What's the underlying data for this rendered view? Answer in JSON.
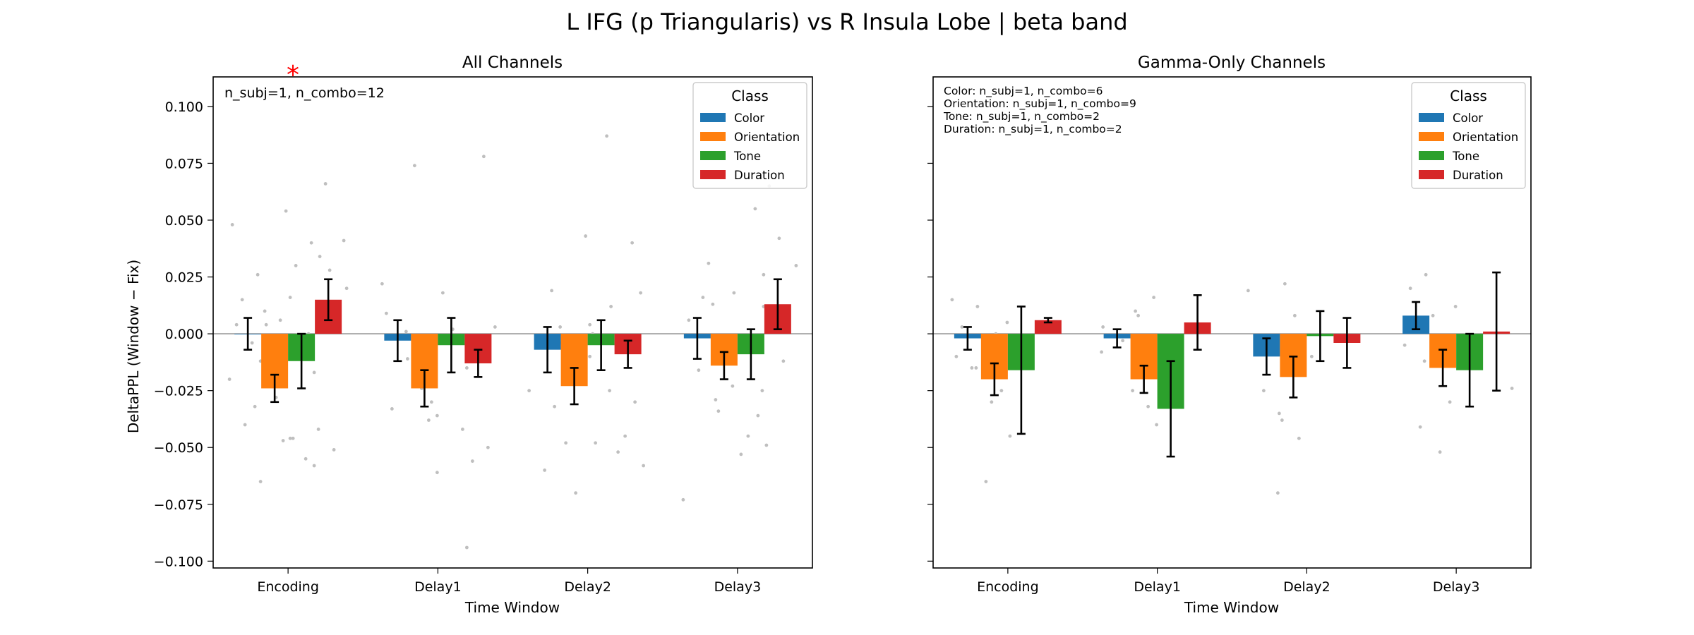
{
  "figure": {
    "suptitle": "L IFG (p Triangularis) vs R Insula Lobe  |  beta band"
  },
  "legend_title": "Class",
  "classes": [
    {
      "name": "Color",
      "color": "#1f77b4"
    },
    {
      "name": "Orientation",
      "color": "#ff7f0e"
    },
    {
      "name": "Tone",
      "color": "#2ca02c"
    },
    {
      "name": "Duration",
      "color": "#d62728"
    }
  ],
  "chart_data": [
    {
      "type": "bar",
      "title": "All Channels",
      "xlabel": "Time Window",
      "ylabel": "DeltaPPL (Window − Fix)",
      "ylim": [
        -0.103,
        0.113
      ],
      "yticks": [
        "0.100",
        "0.075",
        "0.050",
        "0.025",
        "0.000",
        "−0.025",
        "−0.050",
        "−0.075",
        "−0.100"
      ],
      "ytick_values": [
        0.1,
        0.075,
        0.05,
        0.025,
        0,
        -0.025,
        -0.05,
        -0.075,
        -0.1
      ],
      "categories": [
        "Encoding",
        "Delay1",
        "Delay2",
        "Delay3"
      ],
      "annotation": "n_subj=1, n_combo=12",
      "significance_marker": {
        "text": "*",
        "category": "Encoding",
        "color": "#ff0000"
      },
      "legend": "top-right",
      "series": [
        {
          "name": "Color",
          "values": [
            0.0,
            -0.003,
            -0.007,
            -0.002
          ],
          "err": [
            0.007,
            0.009,
            0.01,
            0.009
          ]
        },
        {
          "name": "Orientation",
          "values": [
            -0.024,
            -0.024,
            -0.023,
            -0.014
          ],
          "err": [
            0.006,
            0.008,
            0.008,
            0.006
          ]
        },
        {
          "name": "Tone",
          "values": [
            -0.012,
            -0.005,
            -0.005,
            -0.009
          ],
          "err": [
            0.012,
            0.012,
            0.011,
            0.011
          ]
        },
        {
          "name": "Duration",
          "values": [
            0.015,
            -0.013,
            -0.009,
            0.013
          ],
          "err": [
            0.009,
            0.006,
            0.006,
            0.011
          ]
        }
      ],
      "scatter_points": [
        [
          0,
          0.048
        ],
        [
          0,
          0.026
        ],
        [
          0,
          0.015
        ],
        [
          0,
          0.01
        ],
        [
          0,
          0.004
        ],
        [
          0,
          -0.004
        ],
        [
          0,
          -0.012
        ],
        [
          0,
          -0.02
        ],
        [
          0,
          -0.032
        ],
        [
          0,
          -0.04
        ],
        [
          1,
          0.016
        ],
        [
          1,
          0.004
        ],
        [
          1,
          -0.028
        ],
        [
          1,
          -0.046
        ],
        [
          1,
          -0.065
        ],
        [
          1,
          0.006
        ],
        [
          2,
          0.054
        ],
        [
          2,
          0.04
        ],
        [
          2,
          0.03
        ],
        [
          2,
          -0.042
        ],
        [
          2,
          -0.046
        ],
        [
          2,
          -0.055
        ],
        [
          2,
          -0.058
        ],
        [
          2,
          -0.047
        ],
        [
          2,
          0.0
        ],
        [
          3,
          0.066
        ],
        [
          3,
          0.041
        ],
        [
          3,
          0.034
        ],
        [
          3,
          0.028
        ],
        [
          3,
          0.02
        ],
        [
          3,
          -0.017
        ],
        [
          3,
          -0.051
        ],
        [
          4,
          0.022
        ],
        [
          4,
          -0.011
        ],
        [
          4,
          -0.033
        ],
        [
          4,
          0.074
        ],
        [
          4,
          0.009
        ],
        [
          5,
          -0.038
        ],
        [
          5,
          -0.061
        ],
        [
          5,
          0.001
        ],
        [
          5,
          -0.03
        ],
        [
          5,
          -0.024
        ],
        [
          6,
          -0.094
        ],
        [
          6,
          0.018
        ],
        [
          6,
          0.002
        ],
        [
          6,
          -0.01
        ],
        [
          6,
          -0.036
        ],
        [
          7,
          0.078
        ],
        [
          7,
          -0.042
        ],
        [
          7,
          -0.05
        ],
        [
          7,
          -0.056
        ],
        [
          7,
          0.003
        ],
        [
          7,
          -0.015
        ],
        [
          8,
          0.019
        ],
        [
          8,
          -0.004
        ],
        [
          8,
          -0.025
        ],
        [
          8,
          -0.032
        ],
        [
          8,
          -0.06
        ],
        [
          9,
          -0.01
        ],
        [
          9,
          -0.048
        ],
        [
          9,
          -0.07
        ],
        [
          9,
          0.0
        ],
        [
          9,
          0.003
        ],
        [
          10,
          0.087
        ],
        [
          10,
          0.043
        ],
        [
          10,
          0.012
        ],
        [
          10,
          -0.048
        ],
        [
          10,
          -0.052
        ],
        [
          10,
          0.004
        ],
        [
          11,
          0.04
        ],
        [
          11,
          0.018
        ],
        [
          11,
          -0.025
        ],
        [
          11,
          -0.03
        ],
        [
          11,
          -0.045
        ],
        [
          11,
          -0.058
        ],
        [
          12,
          0.006
        ],
        [
          12,
          -0.016
        ],
        [
          12,
          -0.029
        ],
        [
          12,
          -0.073
        ],
        [
          12,
          0.016
        ],
        [
          13,
          0.031
        ],
        [
          13,
          0.018
        ],
        [
          13,
          -0.034
        ],
        [
          13,
          -0.053
        ],
        [
          13,
          0.013
        ],
        [
          14,
          0.055
        ],
        [
          14,
          0.012
        ],
        [
          14,
          -0.023
        ],
        [
          14,
          -0.036
        ],
        [
          14,
          -0.045
        ],
        [
          14,
          -0.049
        ],
        [
          15,
          0.065
        ],
        [
          15,
          0.042
        ],
        [
          15,
          0.03
        ],
        [
          15,
          0.026
        ],
        [
          15,
          -0.012
        ],
        [
          15,
          -0.025
        ]
      ]
    },
    {
      "type": "bar",
      "title": "Gamma-Only Channels",
      "xlabel": "Time Window",
      "ylabel": "",
      "ylim": [
        -0.103,
        0.113
      ],
      "categories": [
        "Encoding",
        "Delay1",
        "Delay2",
        "Delay3"
      ],
      "annotations": [
        "Color: n_subj=1, n_combo=6",
        "Orientation: n_subj=1, n_combo=9",
        "Tone: n_subj=1, n_combo=2",
        "Duration: n_subj=1, n_combo=2"
      ],
      "legend": "top-right",
      "series": [
        {
          "name": "Color",
          "values": [
            -0.002,
            -0.002,
            -0.01,
            0.008
          ],
          "err": [
            0.005,
            0.004,
            0.008,
            0.006
          ]
        },
        {
          "name": "Orientation",
          "values": [
            -0.02,
            -0.02,
            -0.019,
            -0.015
          ],
          "err": [
            0.007,
            0.006,
            0.009,
            0.008
          ]
        },
        {
          "name": "Tone",
          "values": [
            -0.016,
            -0.033,
            -0.001,
            -0.016
          ],
          "err": [
            0.028,
            0.021,
            0.011,
            0.016
          ]
        },
        {
          "name": "Duration",
          "values": [
            0.006,
            0.005,
            -0.004,
            0.001
          ],
          "err": [
            0.001,
            0.012,
            0.011,
            0.026
          ]
        }
      ],
      "scatter_points": [
        [
          0,
          0.015
        ],
        [
          0,
          0.012
        ],
        [
          0,
          0.003
        ],
        [
          0,
          -0.003
        ],
        [
          0,
          -0.01
        ],
        [
          0,
          -0.015
        ],
        [
          1,
          0.005
        ],
        [
          1,
          -0.015
        ],
        [
          1,
          -0.025
        ],
        [
          1,
          -0.03
        ],
        [
          1,
          -0.045
        ],
        [
          1,
          -0.065
        ],
        [
          1,
          0.0
        ],
        [
          4,
          0.01
        ],
        [
          4,
          0.003
        ],
        [
          4,
          -0.003
        ],
        [
          4,
          -0.008
        ],
        [
          5,
          0.016
        ],
        [
          5,
          0.008
        ],
        [
          5,
          -0.02
        ],
        [
          5,
          -0.025
        ],
        [
          5,
          -0.032
        ],
        [
          5,
          -0.04
        ],
        [
          8,
          0.019
        ],
        [
          8,
          -0.005
        ],
        [
          8,
          -0.025
        ],
        [
          8,
          -0.038
        ],
        [
          9,
          0.022
        ],
        [
          9,
          0.008
        ],
        [
          9,
          -0.01
        ],
        [
          9,
          -0.035
        ],
        [
          9,
          -0.046
        ],
        [
          9,
          -0.07
        ],
        [
          12,
          0.026
        ],
        [
          12,
          0.02
        ],
        [
          12,
          0.008
        ],
        [
          12,
          -0.005
        ],
        [
          12,
          -0.041
        ],
        [
          13,
          0.012
        ],
        [
          13,
          -0.012
        ],
        [
          13,
          -0.03
        ],
        [
          13,
          -0.052
        ],
        [
          15,
          -0.024
        ]
      ]
    }
  ]
}
